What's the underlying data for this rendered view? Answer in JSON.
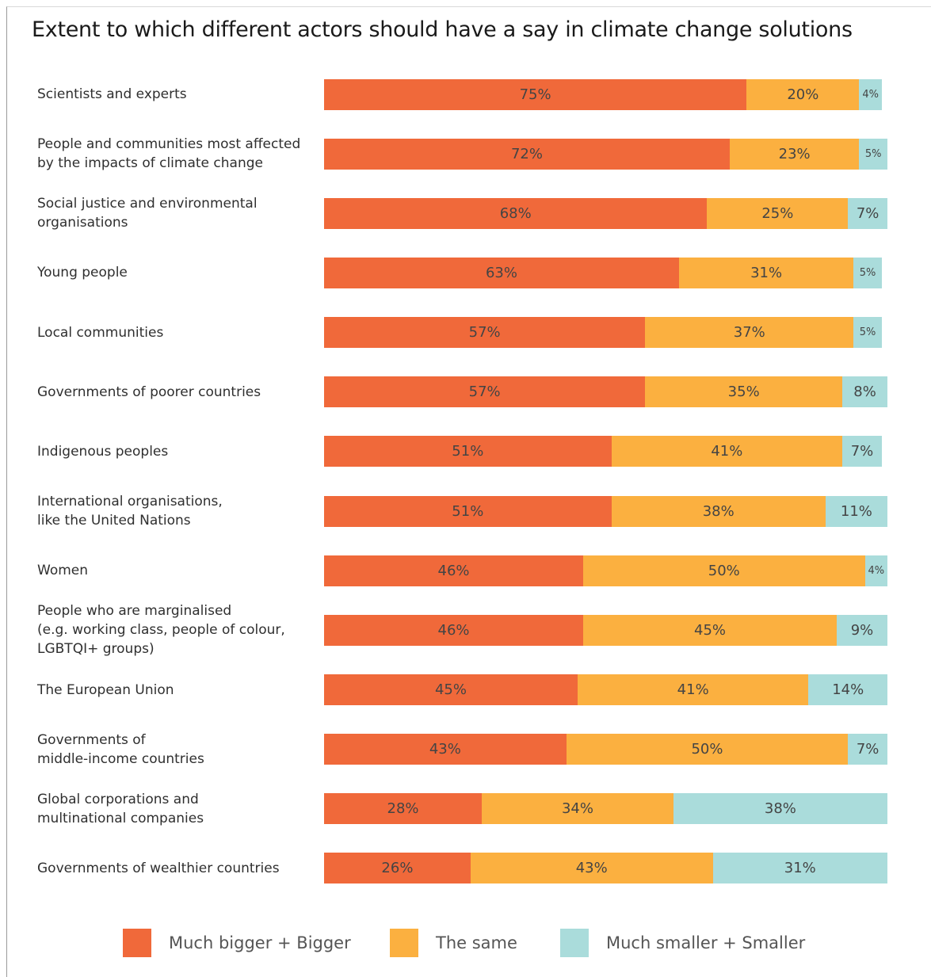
{
  "colors": {
    "bigger": "#f0693a",
    "same": "#fbb040",
    "smaller": "#aadcdb"
  },
  "chart_data": {
    "type": "bar",
    "orientation": "horizontal",
    "stacked": true,
    "title": "Extent to which different actors should have a say in climate change solutions",
    "xlabel": "",
    "ylabel": "",
    "xlim": [
      0,
      100
    ],
    "grid": false,
    "legend_position": "bottom",
    "categories": [
      "Scientists and experts",
      "People and communities most affected\nby the impacts of climate change",
      "Social justice and environmental\norganisations",
      "Young people",
      "Local communities",
      "Governments of poorer countries",
      "Indigenous peoples",
      "International organisations,\nlike the United Nations",
      "Women",
      "People who are marginalised\n(e.g. working class, people of colour,\nLGBTQI+ groups)",
      "The European Union",
      "Governments of\nmiddle-income countries",
      "Global corporations and\nmultinational companies",
      "Governments of wealthier countries"
    ],
    "series": [
      {
        "name": "Much bigger + Bigger",
        "color_key": "bigger",
        "values": [
          75,
          72,
          68,
          63,
          57,
          57,
          51,
          51,
          46,
          46,
          45,
          43,
          28,
          26
        ]
      },
      {
        "name": "The same",
        "color_key": "same",
        "values": [
          20,
          23,
          25,
          31,
          37,
          35,
          41,
          38,
          50,
          45,
          41,
          50,
          34,
          43
        ]
      },
      {
        "name": "Much smaller + Smaller",
        "color_key": "smaller",
        "values": [
          4,
          5,
          7,
          5,
          5,
          8,
          7,
          11,
          4,
          9,
          14,
          7,
          38,
          31
        ]
      }
    ]
  }
}
